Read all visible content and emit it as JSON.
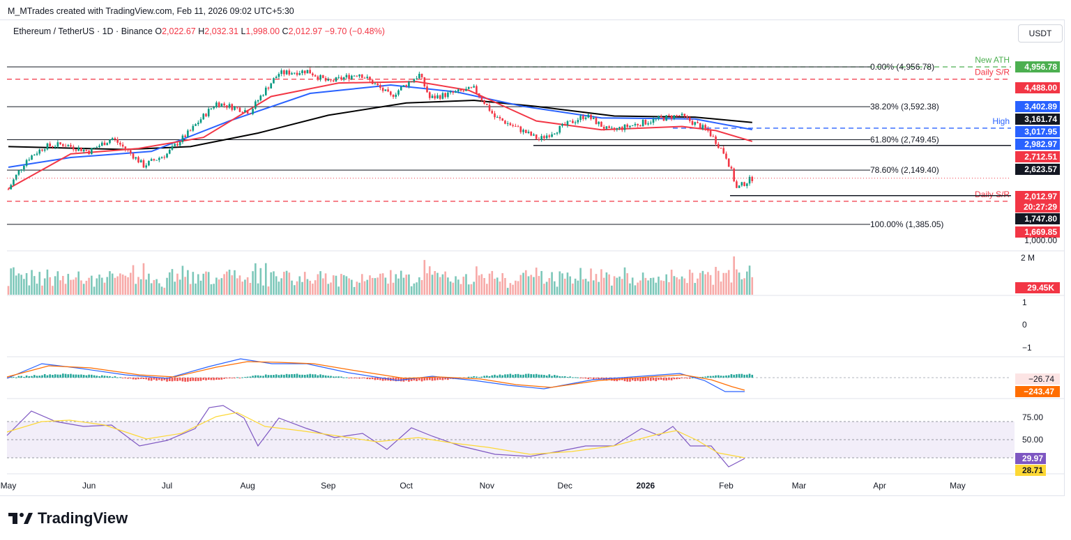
{
  "header": {
    "attribution": "M_MTrades created with TradingView.com, Feb 11, 2026 09:02 UTC+5:30"
  },
  "symbol": {
    "name": "Ethereum / TetherUS · 1D · Binance",
    "o_label": "O",
    "o": "2,022.67",
    "h_label": "H",
    "h": "2,032.31",
    "l_label": "L",
    "l": "1,998.00",
    "c_label": "C",
    "c": "2,012.97",
    "change": "−9.70 (−0.48%)"
  },
  "currency_button": "USDT",
  "brand": "TradingView",
  "colors": {
    "red": "#f23645",
    "green": "#089981",
    "blue": "#2962ff",
    "black": "#131722",
    "ma_red": "#f23645",
    "ma_blue": "#2962ff",
    "ma_black": "#000000",
    "ath_green": "#4caf50",
    "rsi_purple": "#7e57c2",
    "rsi_yellow": "#fdd835",
    "macd_blue": "#2962ff",
    "macd_orange": "#ff6d00"
  },
  "chart_data": {
    "type": "candlestick",
    "symbol": "ETHUSDT",
    "interval": "1D",
    "price_axis": {
      "min": 1000,
      "max": 5000
    },
    "x_axis_labels": [
      "May",
      "Jun",
      "Jul",
      "Aug",
      "Sep",
      "Oct",
      "Nov",
      "Dec",
      "2026",
      "Feb",
      "Mar",
      "Apr",
      "May"
    ],
    "price_series_approx": [
      {
        "date": "2025-05-01",
        "close": 1840
      },
      {
        "date": "2025-05-08",
        "close": 2340
      },
      {
        "date": "2025-05-15",
        "close": 2600
      },
      {
        "date": "2025-05-22",
        "close": 2650
      },
      {
        "date": "2025-06-01",
        "close": 2500
      },
      {
        "date": "2025-06-10",
        "close": 2780
      },
      {
        "date": "2025-06-22",
        "close": 2230
      },
      {
        "date": "2025-07-01",
        "close": 2450
      },
      {
        "date": "2025-07-10",
        "close": 2950
      },
      {
        "date": "2025-07-20",
        "close": 3700
      },
      {
        "date": "2025-08-02",
        "close": 3450
      },
      {
        "date": "2025-08-13",
        "close": 4700
      },
      {
        "date": "2025-08-24",
        "close": 4800
      },
      {
        "date": "2025-09-01",
        "close": 4380
      },
      {
        "date": "2025-09-13",
        "close": 4700
      },
      {
        "date": "2025-09-25",
        "close": 3900
      },
      {
        "date": "2025-10-06",
        "close": 4650
      },
      {
        "date": "2025-10-10",
        "close": 3850
      },
      {
        "date": "2025-10-27",
        "close": 4150
      },
      {
        "date": "2025-11-04",
        "close": 3300
      },
      {
        "date": "2025-11-21",
        "close": 2750
      },
      {
        "date": "2025-12-09",
        "close": 3350
      },
      {
        "date": "2025-12-18",
        "close": 2950
      },
      {
        "date": "2026-01-06",
        "close": 3250
      },
      {
        "date": "2026-01-14",
        "close": 3350
      },
      {
        "date": "2026-01-25",
        "close": 2950
      },
      {
        "date": "2026-02-01",
        "close": 2400
      },
      {
        "date": "2026-02-05",
        "close": 1850
      },
      {
        "date": "2026-02-11",
        "close": 2012.97
      }
    ],
    "moving_averages": [
      {
        "name": "MA red",
        "last": 2712.51
      },
      {
        "name": "MA blue",
        "last": 2982.97
      },
      {
        "name": "MA black",
        "last": 3161.74
      }
    ],
    "fib_levels": [
      {
        "label": "0.00% (4,956.78)",
        "price": 4956.78
      },
      {
        "label": "38.20% (3,592.38)",
        "price": 3592.38
      },
      {
        "label": "61.80% (2,749.45)",
        "price": 2749.45
      },
      {
        "label": "78.60% (2,149.40)",
        "price": 2149.4
      },
      {
        "label": "100.00% (1,385.05)",
        "price": 1385.05
      }
    ],
    "horizontal_levels": [
      {
        "label": "New ATH",
        "price": 4956.78,
        "color": "green",
        "style": "dashed"
      },
      {
        "label": "Daily S/R",
        "price": 4488.0,
        "color": "red",
        "style": "dashed"
      },
      {
        "label": "High",
        "price": 3017.95,
        "color": "blue",
        "style": "dashed"
      },
      {
        "label": "",
        "price": 2623.57,
        "color": "black",
        "style": "solid"
      },
      {
        "label": "Daily S/R",
        "price": 1669.85,
        "color": "red",
        "style": "dashed"
      },
      {
        "label": "",
        "price": 1747.8,
        "color": "black",
        "style": "solid"
      }
    ],
    "price_tags": [
      {
        "text": "4,956.78",
        "color": "#4caf50"
      },
      {
        "text": "4,488.00",
        "color": "#f23645"
      },
      {
        "text": "3,402.89",
        "color": "#2962ff"
      },
      {
        "text": "3,161.74",
        "color": "#131722"
      },
      {
        "text": "3,017.95",
        "color": "#2962ff"
      },
      {
        "text": "2,982.97",
        "color": "#2962ff"
      },
      {
        "text": "2,712.51",
        "color": "#f23645"
      },
      {
        "text": "2,623.57",
        "color": "#131722"
      },
      {
        "text": "2,012.97",
        "color": "#f23645"
      },
      {
        "text": "20:27:29",
        "color": "#f23645"
      },
      {
        "text": "1,747.80",
        "color": "#131722"
      },
      {
        "text": "1,669.85",
        "color": "#f23645"
      }
    ],
    "price_scale_label": "1,000.00",
    "volume": {
      "axis_label": "2 M",
      "last": "29.45K"
    },
    "blank_pane_labels": [
      "1",
      "0",
      "−1"
    ],
    "macd": {
      "histogram": -26.74,
      "signal": -243.47,
      "histogram_label": "−26.74",
      "signal_label": "−243.47"
    },
    "rsi": {
      "value": 29.97,
      "ma": 28.71,
      "value_label": "29.97",
      "ma_label": "28.71",
      "levels": [
        "75.00",
        "50.00"
      ]
    }
  }
}
